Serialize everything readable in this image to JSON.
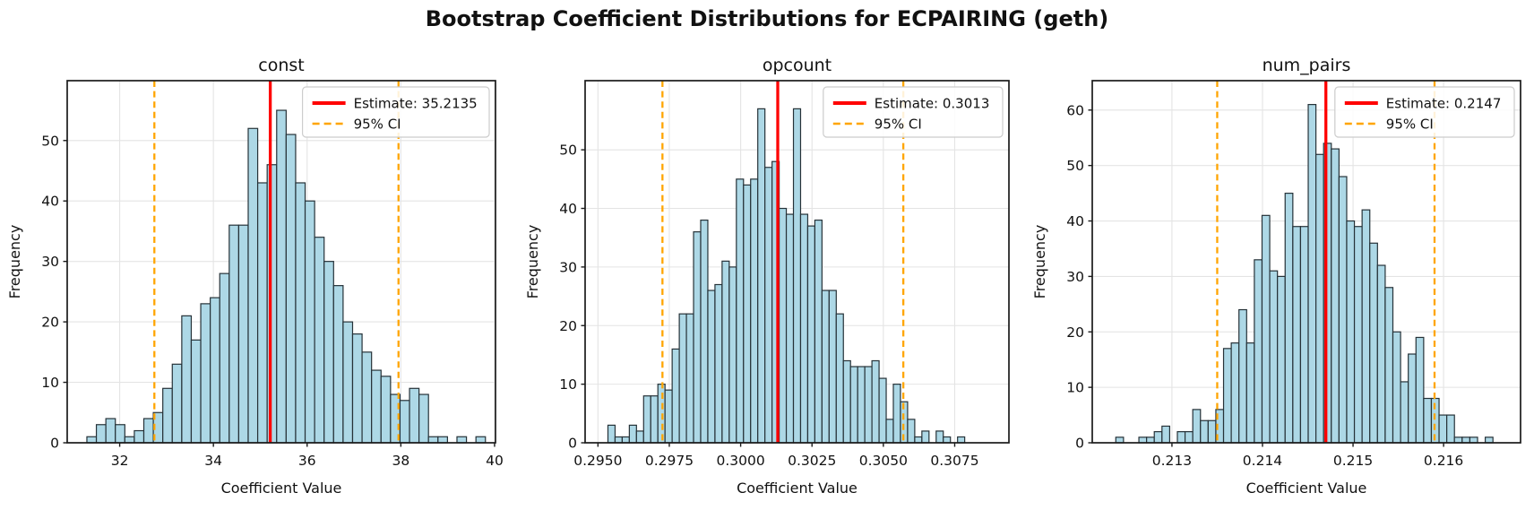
{
  "figure": {
    "title": "Bootstrap Coefficient Distributions for ECPAIRING (geth)"
  },
  "style": {
    "background": "#ffffff",
    "bar_fill": "#add8e6",
    "bar_edge": "#263238",
    "estimate_color": "#ff0000",
    "ci_color": "#ffa500",
    "grid_color": "#e4e4e4",
    "spine_color": "#1a1a1a",
    "text_color": "#111111",
    "legend_border": "#cccccc",
    "legend_bg": "#ffffff"
  },
  "chart_data": [
    {
      "type": "bar",
      "subtype": "histogram",
      "title": "const",
      "xlabel": "Coefficient Value",
      "ylabel": "Frequency",
      "bin_start": 31.3,
      "bin_width": 0.2025,
      "frequencies": [
        1,
        3,
        4,
        3,
        1,
        2,
        4,
        5,
        9,
        13,
        21,
        17,
        23,
        24,
        28,
        36,
        36,
        52,
        43,
        46,
        55,
        51,
        43,
        40,
        34,
        30,
        26,
        20,
        18,
        15,
        12,
        11,
        8,
        7,
        9,
        8,
        1,
        1,
        0,
        1,
        0,
        1
      ],
      "estimate": 35.2135,
      "ci": [
        32.74,
        37.95
      ],
      "legend": {
        "estimate_label": "Estimate: 35.2135",
        "ci_label": "95% CI",
        "position": "top-right"
      },
      "xlim": [
        30.88,
        40.02
      ],
      "ylim": [
        0,
        59.9
      ],
      "grid": true,
      "x_ticks": [
        {
          "value": 32,
          "label": "32"
        },
        {
          "value": 34,
          "label": "34"
        },
        {
          "value": 36,
          "label": "36"
        },
        {
          "value": 38,
          "label": "38"
        },
        {
          "value": 40,
          "label": "40"
        }
      ],
      "y_ticks": [
        {
          "value": 0,
          "label": "0"
        },
        {
          "value": 10,
          "label": "10"
        },
        {
          "value": 20,
          "label": "20"
        },
        {
          "value": 30,
          "label": "30"
        },
        {
          "value": 40,
          "label": "40"
        },
        {
          "value": 50,
          "label": "50"
        }
      ]
    },
    {
      "type": "bar",
      "subtype": "histogram",
      "title": "opcount",
      "xlabel": "Coefficient Value",
      "ylabel": "Frequency",
      "bin_start": 0.29535,
      "bin_width": 0.00025,
      "frequencies": [
        3,
        1,
        1,
        3,
        2,
        8,
        8,
        10,
        9,
        16,
        22,
        22,
        36,
        38,
        26,
        27,
        31,
        30,
        45,
        44,
        45,
        57,
        47,
        48,
        40,
        39,
        57,
        39,
        37,
        38,
        26,
        26,
        22,
        14,
        13,
        13,
        13,
        14,
        11,
        4,
        10,
        7,
        4,
        1,
        2,
        0,
        2,
        1,
        0,
        1
      ],
      "estimate": 0.3013,
      "ci": [
        0.29726,
        0.3057
      ],
      "legend": {
        "estimate_label": "Estimate: 0.3013",
        "ci_label": "95% CI",
        "position": "top-right"
      },
      "xlim": [
        0.29455,
        0.3094
      ],
      "ylim": [
        0,
        61.8
      ],
      "grid": true,
      "x_ticks": [
        {
          "value": 0.295,
          "label": "0.2950"
        },
        {
          "value": 0.2975,
          "label": "0.2975"
        },
        {
          "value": 0.3,
          "label": "0.3000"
        },
        {
          "value": 0.3025,
          "label": "0.3025"
        },
        {
          "value": 0.305,
          "label": "0.3050"
        },
        {
          "value": 0.3075,
          "label": "0.3075"
        }
      ],
      "y_ticks": [
        {
          "value": 0,
          "label": "0"
        },
        {
          "value": 10,
          "label": "10"
        },
        {
          "value": 20,
          "label": "20"
        },
        {
          "value": 30,
          "label": "30"
        },
        {
          "value": 40,
          "label": "40"
        },
        {
          "value": 50,
          "label": "50"
        }
      ]
    },
    {
      "type": "bar",
      "subtype": "histogram",
      "title": "num_pairs",
      "xlabel": "Coefficient Value",
      "ylabel": "Frequency",
      "bin_start": 0.21238,
      "bin_width": 8.5e-05,
      "frequencies": [
        1,
        0,
        0,
        1,
        1,
        2,
        3,
        0,
        2,
        2,
        6,
        4,
        4,
        6,
        17,
        18,
        24,
        18,
        33,
        41,
        31,
        30,
        45,
        39,
        39,
        61,
        52,
        54,
        53,
        48,
        40,
        39,
        42,
        36,
        32,
        28,
        20,
        11,
        16,
        19,
        8,
        8,
        5,
        5,
        1,
        1,
        1,
        0,
        1
      ],
      "estimate": 0.2147,
      "ci": [
        0.2135,
        0.2159
      ],
      "legend": {
        "estimate_label": "Estimate: 0.2147",
        "ci_label": "95% CI",
        "position": "top-right"
      },
      "xlim": [
        0.21212,
        0.21685
      ],
      "ylim": [
        0,
        65.3
      ],
      "grid": true,
      "x_ticks": [
        {
          "value": 0.213,
          "label": "0.213"
        },
        {
          "value": 0.214,
          "label": "0.214"
        },
        {
          "value": 0.215,
          "label": "0.215"
        },
        {
          "value": 0.216,
          "label": "0.216"
        }
      ],
      "y_ticks": [
        {
          "value": 0,
          "label": "0"
        },
        {
          "value": 10,
          "label": "10"
        },
        {
          "value": 20,
          "label": "20"
        },
        {
          "value": 30,
          "label": "30"
        },
        {
          "value": 40,
          "label": "40"
        },
        {
          "value": 50,
          "label": "50"
        },
        {
          "value": 60,
          "label": "60"
        }
      ]
    }
  ]
}
